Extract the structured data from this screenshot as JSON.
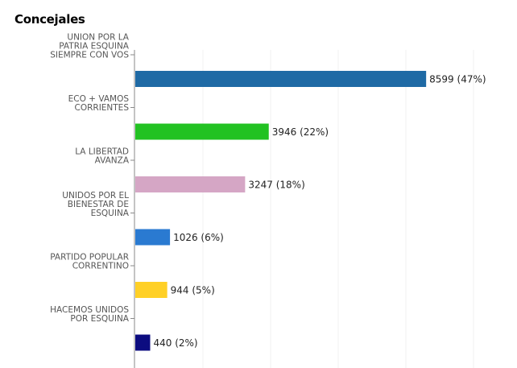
{
  "chart_data": {
    "type": "bar",
    "orientation": "horizontal",
    "title": "Concejales",
    "categories": [
      [
        "UNION POR LA",
        "PATRIA ESQUINA",
        "SIEMPRE CON VOS"
      ],
      [
        "ECO + VAMOS",
        "CORRIENTES"
      ],
      [
        "LA LIBERTAD",
        "AVANZA"
      ],
      [
        "UNIDOS POR EL",
        "BIENESTAR DE",
        "ESQUINA"
      ],
      [
        "PARTIDO POPULAR",
        "CORRENTINO"
      ],
      [
        "HACEMOS UNIDOS",
        "POR ESQUINA"
      ]
    ],
    "values": [
      8599,
      3946,
      3247,
      1026,
      944,
      440
    ],
    "data_labels": [
      "8599 (47%)",
      "3946 (22%)",
      "3247 (18%)",
      "1026 (6%)",
      "944 (5%)",
      "440 (2%)"
    ],
    "colors": [
      "#1f6aa5",
      "#22c222",
      "#d5a6c5",
      "#2a7ad1",
      "#ffd026",
      "#0c0c80"
    ],
    "xlim": [
      0,
      11000
    ],
    "grid": true,
    "legend": "none"
  }
}
